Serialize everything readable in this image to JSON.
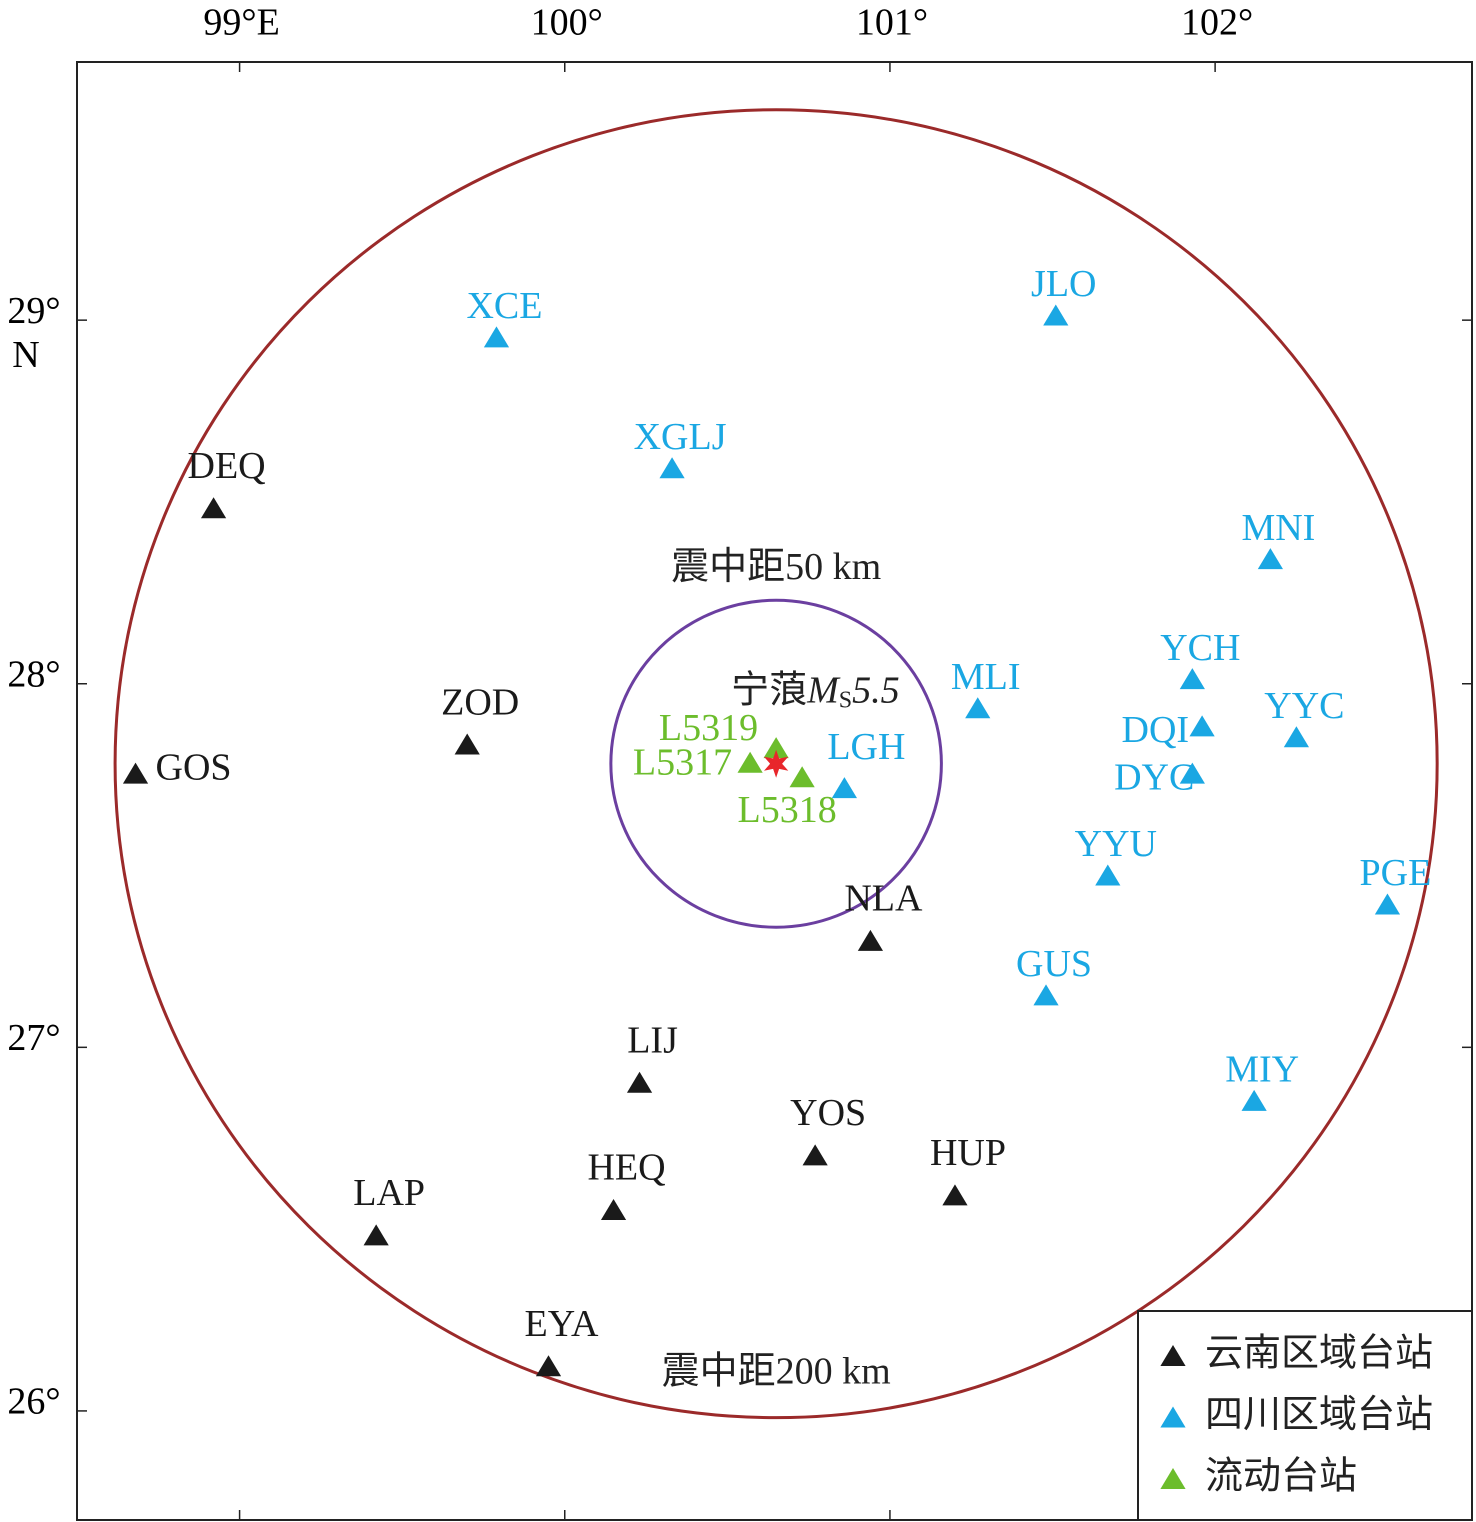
{
  "chart_data": {
    "type": "scatter",
    "xlim": [
      98.5,
      102.79
    ],
    "ylim": [
      25.7,
      29.71
    ],
    "xticks": [
      {
        "value": 99,
        "label": "99°E"
      },
      {
        "value": 100,
        "label": "100°"
      },
      {
        "value": 101,
        "label": "101°"
      },
      {
        "value": 102,
        "label": "102°"
      }
    ],
    "yticks": [
      {
        "value": 26,
        "label": "26°"
      },
      {
        "value": 27,
        "label": "27°"
      },
      {
        "value": 28,
        "label": "28°"
      },
      {
        "value": 29,
        "label": "29°"
      }
    ],
    "y_unit": "N",
    "series": [
      {
        "name": "云南区域台站",
        "color": "#1a1a1a",
        "labels": [
          "DEQ",
          "GOS",
          "ZOD",
          "NLA",
          "LIJ",
          "YOS",
          "HUP",
          "HEQ",
          "LAP",
          "EYA"
        ],
        "x": [
          98.92,
          98.68,
          99.7,
          100.94,
          100.23,
          100.77,
          101.2,
          100.15,
          99.42,
          99.95
        ],
        "values": [
          28.48,
          27.75,
          27.83,
          27.29,
          26.9,
          26.7,
          26.59,
          26.55,
          26.48,
          26.12
        ]
      },
      {
        "name": "四川区域台站",
        "color": "#1aa7e3",
        "labels": [
          "XCE",
          "JLO",
          "XGLJ",
          "MNI",
          "YCH",
          "MLI",
          "YYC",
          "DQI",
          "DYC",
          "LGH",
          "YYU",
          "PGE",
          "GUS",
          "MIY"
        ],
        "x": [
          99.79,
          101.51,
          100.33,
          102.17,
          101.93,
          101.27,
          102.25,
          101.96,
          101.93,
          100.86,
          101.67,
          102.53,
          101.48,
          102.12
        ],
        "values": [
          28.95,
          29.01,
          28.59,
          28.34,
          28.01,
          27.93,
          27.85,
          27.88,
          27.75,
          27.71,
          27.47,
          27.39,
          27.14,
          26.85
        ]
      },
      {
        "name": "流动台站",
        "color": "#6cbd2c",
        "labels": [
          "L5319",
          "L5317",
          "L5318"
        ],
        "x": [
          100.65,
          100.57,
          100.73
        ],
        "values": [
          27.82,
          27.78,
          27.74
        ]
      }
    ],
    "epicenter": {
      "place": "宁蒗",
      "magnitude_symbol": "M",
      "magnitude_subscript": "S",
      "magnitude": 5.5,
      "x": 100.65,
      "y": 27.78,
      "color": "#e8262b"
    },
    "circles": [
      {
        "label": "震中距50 km",
        "radius_km": 50,
        "color": "#6b3fa0"
      },
      {
        "label": "震中距200 km",
        "radius_km": 200,
        "color": "#9b2a2a"
      }
    ],
    "legend_position": "lower right"
  }
}
